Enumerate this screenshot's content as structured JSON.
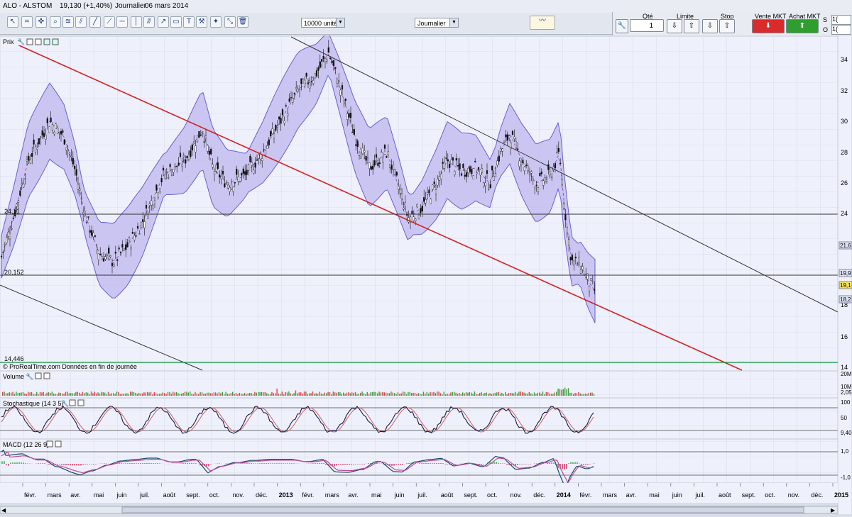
{
  "window": {
    "symbol": "ALO - ALSTOM",
    "price": "19,130 (+1,40%)",
    "period": "Journalier",
    "date": "06 mars 2014"
  },
  "toolbar": {
    "units": "10000 unités",
    "timeframe": "Journalier"
  },
  "order": {
    "qty_label": "Qté",
    "qty": "1",
    "limit_label": "Limite",
    "stop_label": "Stop",
    "sell_label": "Vente MKT",
    "buy_label": "Achat MKT",
    "s_label": "S",
    "o_label": "O",
    "field1": "1(",
    "field2": "1("
  },
  "panels": {
    "price": {
      "label": "Prix",
      "footer": "© ProRealTime.com Données en fin de journée",
      "left_label_1": "24,11",
      "left_label_2": "20,152",
      "left_label_3": "14,446"
    },
    "volume": {
      "label": "Volume"
    },
    "stoch": {
      "label": "Stochastique (14 3 5)"
    },
    "macd": {
      "label": "MACD (12 26 9)"
    }
  },
  "axis": {
    "price_ticks": [
      "34",
      "32",
      "30",
      "28",
      "26",
      "24",
      "22",
      "18",
      "16",
      "14"
    ],
    "price_badges": [
      "21,6",
      "19,9",
      "19,1",
      "18,2"
    ],
    "volume_ticks": [
      "20M",
      "10M",
      "2,05"
    ],
    "stoch_ticks": [
      "100",
      "50",
      "9,40"
    ],
    "macd_ticks": [
      "1,0",
      "-1,0"
    ],
    "months": [
      "févr.",
      "mars",
      "avr.",
      "mai",
      "juin",
      "juil.",
      "août",
      "sept.",
      "oct.",
      "nov.",
      "déc.",
      "2013",
      "févr.",
      "mars",
      "avr.",
      "mai",
      "juin",
      "juil.",
      "août",
      "sept.",
      "oct.",
      "nov.",
      "déc.",
      "2014",
      "févr.",
      "mars",
      "avr.",
      "mai",
      "juin",
      "juil.",
      "août",
      "sept.",
      "oct.",
      "nov.",
      "déc.",
      "2015"
    ]
  },
  "colors": {
    "band": "#b8b4ec",
    "band_stroke": "#6b5fd0",
    "trend_red": "#d42020",
    "trend_gray": "#333333",
    "buy": "#2fa32f",
    "sell": "#d42a2a"
  }
}
